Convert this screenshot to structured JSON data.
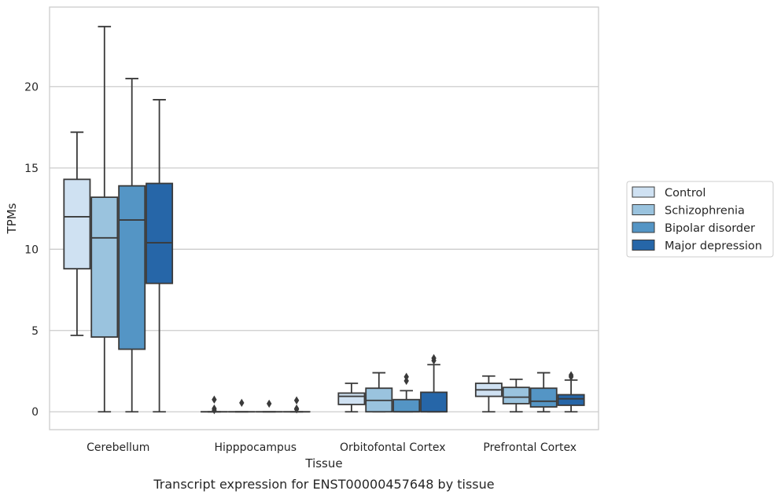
{
  "chart_data": {
    "type": "box",
    "title": "Transcript expression for ENST00000457648 by tissue",
    "xlabel": "Tissue",
    "ylabel": "TPMs",
    "ylim": [
      -1.1,
      24.9
    ],
    "yticks": [
      0,
      5,
      10,
      15,
      20
    ],
    "grid": "horizontal",
    "legend_position": "right",
    "categories": [
      "Cerebellum",
      "Hipppocampus",
      "Orbitofontal Cortex",
      "Prefrontal Cortex"
    ],
    "series": [
      {
        "name": "Control",
        "color": "#cfe1f2",
        "boxes": [
          {
            "whisker_low": 4.7,
            "q1": 8.8,
            "median": 12.0,
            "q3": 14.3,
            "whisker_high": 17.2,
            "outliers": []
          },
          {
            "whisker_low": 0,
            "q1": 0,
            "median": 0,
            "q3": 0,
            "whisker_high": 0,
            "outliers": [
              0.1,
              0.2,
              0.75
            ]
          },
          {
            "whisker_low": 0.0,
            "q1": 0.45,
            "median": 0.95,
            "q3": 1.15,
            "whisker_high": 1.75,
            "outliers": []
          },
          {
            "whisker_low": 0.0,
            "q1": 0.95,
            "median": 1.35,
            "q3": 1.75,
            "whisker_high": 2.2,
            "outliers": []
          }
        ]
      },
      {
        "name": "Schizophrenia",
        "color": "#9ac3de",
        "boxes": [
          {
            "whisker_low": 0.0,
            "q1": 4.6,
            "median": 10.7,
            "q3": 13.2,
            "whisker_high": 23.7,
            "outliers": []
          },
          {
            "whisker_low": 0,
            "q1": 0,
            "median": 0,
            "q3": 0,
            "whisker_high": 0,
            "outliers": [
              0.55
            ]
          },
          {
            "whisker_low": 0.0,
            "q1": 0.0,
            "median": 0.7,
            "q3": 1.45,
            "whisker_high": 2.4,
            "outliers": []
          },
          {
            "whisker_low": 0.0,
            "q1": 0.5,
            "median": 0.9,
            "q3": 1.5,
            "whisker_high": 2.0,
            "outliers": []
          }
        ]
      },
      {
        "name": "Bipolar disorder",
        "color": "#5495c5",
        "boxes": [
          {
            "whisker_low": 0.0,
            "q1": 3.85,
            "median": 11.8,
            "q3": 13.9,
            "whisker_high": 20.5,
            "outliers": []
          },
          {
            "whisker_low": 0,
            "q1": 0,
            "median": 0,
            "q3": 0,
            "whisker_high": 0,
            "outliers": [
              0.5
            ]
          },
          {
            "whisker_low": 0.0,
            "q1": 0.0,
            "median": 0.0,
            "q3": 0.75,
            "whisker_high": 1.3,
            "outliers": [
              1.9,
              2.15
            ]
          },
          {
            "whisker_low": 0.0,
            "q1": 0.3,
            "median": 0.65,
            "q3": 1.45,
            "whisker_high": 2.4,
            "outliers": []
          }
        ]
      },
      {
        "name": "Major depression",
        "color": "#2666a8",
        "boxes": [
          {
            "whisker_low": 0.0,
            "q1": 7.9,
            "median": 10.4,
            "q3": 14.05,
            "whisker_high": 19.2,
            "outliers": []
          },
          {
            "whisker_low": 0,
            "q1": 0,
            "median": 0,
            "q3": 0,
            "whisker_high": 0,
            "outliers": [
              0.15,
              0.2,
              0.7
            ]
          },
          {
            "whisker_low": 0.0,
            "q1": 0.0,
            "median": 0.0,
            "q3": 1.2,
            "whisker_high": 2.9,
            "outliers": [
              3.15,
              3.3
            ]
          },
          {
            "whisker_low": 0.0,
            "q1": 0.4,
            "median": 0.8,
            "q3": 1.05,
            "whisker_high": 1.95,
            "outliers": [
              2.15,
              2.25
            ]
          }
        ]
      }
    ]
  }
}
